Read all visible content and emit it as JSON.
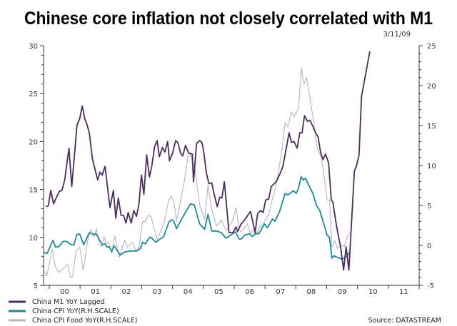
{
  "chart_data": {
    "type": "line",
    "title": "Chinese core inflation not closely correlated with M1",
    "date": "3/11/09",
    "source": "Source: DATASTREAM",
    "xlim": [
      1999.815,
      2012.0
    ],
    "x_tick_labels": [
      "00",
      "01",
      "02",
      "03",
      "04",
      "05",
      "06",
      "07",
      "08",
      "09",
      "10",
      "11"
    ],
    "y_left": {
      "range": [
        5,
        30
      ],
      "ticks": [
        "5",
        "10",
        "15",
        "20",
        "25",
        "30"
      ]
    },
    "y_right": {
      "range": [
        -5,
        25
      ],
      "ticks": [
        "-5",
        "0",
        "5",
        "10",
        "15",
        "20",
        "25"
      ]
    },
    "grid": false,
    "legend_position": "bottom-left",
    "series": [
      {
        "name": "China M1 YoY Lagged",
        "axis": "left",
        "color": "#4b2c5e",
        "points": [
          [
            1999.89,
            13.2
          ],
          [
            1999.97,
            13.3
          ],
          [
            2000.05,
            14.9
          ],
          [
            2000.14,
            13.5
          ],
          [
            2000.25,
            14.3
          ],
          [
            2000.33,
            14.8
          ],
          [
            2000.41,
            14.9
          ],
          [
            2000.5,
            16.0
          ],
          [
            2000.64,
            19.3
          ],
          [
            2000.73,
            15.3
          ],
          [
            2000.9,
            21.7
          ],
          [
            2000.99,
            22.4
          ],
          [
            2001.07,
            23.7
          ],
          [
            2001.15,
            22.4
          ],
          [
            2001.22,
            21.8
          ],
          [
            2001.3,
            20.9
          ],
          [
            2001.4,
            18.2
          ],
          [
            2001.57,
            16.0
          ],
          [
            2001.64,
            16.8
          ],
          [
            2001.72,
            16.5
          ],
          [
            2001.81,
            17.4
          ],
          [
            2001.97,
            13.1
          ],
          [
            2002.08,
            14.9
          ],
          [
            2002.16,
            12.0
          ],
          [
            2002.24,
            14.1
          ],
          [
            2002.33,
            12.3
          ],
          [
            2002.41,
            12.3
          ],
          [
            2002.49,
            11.5
          ],
          [
            2002.56,
            12.6
          ],
          [
            2002.66,
            11.5
          ],
          [
            2002.74,
            12.8
          ],
          [
            2002.83,
            12.2
          ],
          [
            2002.91,
            13.5
          ],
          [
            2002.99,
            16.5
          ],
          [
            2003.07,
            14.5
          ],
          [
            2003.16,
            18.6
          ],
          [
            2003.25,
            16.3
          ],
          [
            2003.33,
            17.5
          ],
          [
            2003.42,
            19.5
          ],
          [
            2003.5,
            20.1
          ],
          [
            2003.57,
            18.4
          ],
          [
            2003.67,
            19.4
          ],
          [
            2003.75,
            18.9
          ],
          [
            2003.84,
            20.0
          ],
          [
            2003.9,
            18.0
          ],
          [
            2004.0,
            18.8
          ],
          [
            2004.1,
            20.1
          ],
          [
            2004.17,
            19.9
          ],
          [
            2004.26,
            18.8
          ],
          [
            2004.33,
            18.5
          ],
          [
            2004.42,
            19.6
          ],
          [
            2004.52,
            18.8
          ],
          [
            2004.64,
            18.7
          ],
          [
            2004.68,
            15.8
          ],
          [
            2004.78,
            19.8
          ],
          [
            2004.88,
            20.1
          ],
          [
            2004.95,
            19.9
          ],
          [
            2005.0,
            19.2
          ],
          [
            2005.1,
            16.7
          ],
          [
            2005.18,
            15.6
          ],
          [
            2005.27,
            15.7
          ],
          [
            2005.35,
            14.5
          ],
          [
            2005.45,
            13.2
          ],
          [
            2005.53,
            14.2
          ],
          [
            2005.6,
            14.1
          ],
          [
            2005.68,
            15.8
          ],
          [
            2005.83,
            10.5
          ],
          [
            2005.96,
            10.5
          ],
          [
            2006.06,
            11.1
          ],
          [
            2006.11,
            10.6
          ],
          [
            2006.22,
            11.4
          ],
          [
            2006.31,
            11.7
          ],
          [
            2006.42,
            12.2
          ],
          [
            2006.53,
            12.7
          ],
          [
            2006.68,
            10.5
          ],
          [
            2006.76,
            12.5
          ],
          [
            2006.85,
            12.8
          ],
          [
            2006.94,
            12.6
          ],
          [
            2007.02,
            13.9
          ],
          [
            2007.12,
            14.0
          ],
          [
            2007.2,
            15.3
          ],
          [
            2007.36,
            15.8
          ],
          [
            2007.48,
            16.6
          ],
          [
            2007.58,
            17.4
          ],
          [
            2007.7,
            19.5
          ],
          [
            2007.78,
            20.9
          ],
          [
            2007.86,
            19.9
          ],
          [
            2007.94,
            20.0
          ],
          [
            2008.04,
            19.3
          ],
          [
            2008.13,
            20.9
          ],
          [
            2008.2,
            20.9
          ],
          [
            2008.28,
            22.7
          ],
          [
            2008.38,
            22.1
          ],
          [
            2008.46,
            22.2
          ],
          [
            2008.55,
            21.6
          ],
          [
            2008.64,
            20.9
          ],
          [
            2008.72,
            20.5
          ],
          [
            2008.8,
            18.9
          ],
          [
            2008.88,
            18.1
          ],
          [
            2008.96,
            18.7
          ],
          [
            2009.06,
            17.8
          ],
          [
            2009.15,
            13.9
          ],
          [
            2009.2,
            13.7
          ],
          [
            2009.32,
            11.2
          ],
          [
            2009.45,
            9.0
          ],
          [
            2009.55,
            6.6
          ],
          [
            2009.63,
            9.0
          ],
          [
            2009.72,
            6.6
          ],
          [
            2009.9,
            16.9
          ],
          [
            2009.97,
            17.5
          ],
          [
            2010.05,
            18.6
          ],
          [
            2010.13,
            24.7
          ],
          [
            2010.4,
            29.4
          ]
        ]
      },
      {
        "name": "China CPI YoY(R.H.SCALE)",
        "axis": "right",
        "color": "#1f8a94",
        "points": [
          [
            1999.83,
            -0.9
          ],
          [
            1999.93,
            -1.0
          ],
          [
            2000.12,
            0.65
          ],
          [
            2000.2,
            -0.2
          ],
          [
            2000.3,
            -0.2
          ],
          [
            2000.45,
            0.5
          ],
          [
            2000.56,
            0.5
          ],
          [
            2000.72,
            0.06
          ],
          [
            2000.8,
            0.06
          ],
          [
            2000.9,
            1.4
          ],
          [
            2000.99,
            1.4
          ],
          [
            2001.12,
            0.06
          ],
          [
            2001.3,
            1.6
          ],
          [
            2001.41,
            1.4
          ],
          [
            2001.53,
            1.4
          ],
          [
            2001.72,
            0.06
          ],
          [
            2001.8,
            0.2
          ],
          [
            2001.87,
            -0.2
          ],
          [
            2001.95,
            -0.2
          ],
          [
            2002.03,
            -0.8
          ],
          [
            2002.1,
            -0.05
          ],
          [
            2002.3,
            -1.2
          ],
          [
            2002.46,
            -0.8
          ],
          [
            2002.65,
            -0.7
          ],
          [
            2002.85,
            -0.7
          ],
          [
            2002.95,
            -0.4
          ],
          [
            2003.03,
            0.4
          ],
          [
            2003.12,
            0.2
          ],
          [
            2003.25,
            1.0
          ],
          [
            2003.3,
            1.0
          ],
          [
            2003.46,
            0.4
          ],
          [
            2003.71,
            1.1
          ],
          [
            2003.88,
            2.9
          ],
          [
            2003.96,
            3.2
          ],
          [
            2004.03,
            3.1
          ],
          [
            2004.13,
            2.1
          ],
          [
            2004.28,
            3.2
          ],
          [
            2004.58,
            5.2
          ],
          [
            2004.7,
            5.1
          ],
          [
            2004.88,
            2.7
          ],
          [
            2005.04,
            2.0
          ],
          [
            2005.15,
            3.9
          ],
          [
            2005.27,
            1.8
          ],
          [
            2005.42,
            1.8
          ],
          [
            2005.58,
            1.6
          ],
          [
            2005.73,
            0.9
          ],
          [
            2005.85,
            1.2
          ],
          [
            2006.04,
            1.7
          ],
          [
            2006.16,
            0.8
          ],
          [
            2006.23,
            0.8
          ],
          [
            2006.35,
            1.3
          ],
          [
            2006.5,
            1.45
          ],
          [
            2006.58,
            1.1
          ],
          [
            2006.7,
            1.5
          ],
          [
            2006.8,
            1.45
          ],
          [
            2006.98,
            2.7
          ],
          [
            2007.08,
            2.2
          ],
          [
            2007.24,
            3.3
          ],
          [
            2007.32,
            3.0
          ],
          [
            2007.47,
            4.2
          ],
          [
            2007.65,
            6.5
          ],
          [
            2007.74,
            6.3
          ],
          [
            2007.92,
            6.85
          ],
          [
            2008.01,
            6.5
          ],
          [
            2008.09,
            7.2
          ],
          [
            2008.17,
            8.6
          ],
          [
            2008.24,
            8.2
          ],
          [
            2008.31,
            8.4
          ],
          [
            2008.55,
            6.5
          ],
          [
            2008.67,
            5.0
          ],
          [
            2008.78,
            4.3
          ],
          [
            2008.94,
            2.3
          ],
          [
            2009.01,
            1.3
          ],
          [
            2009.09,
            1.0
          ],
          [
            2009.17,
            -1.6
          ],
          [
            2009.24,
            -1.3
          ],
          [
            2009.4,
            -1.6
          ],
          [
            2009.51,
            -1.7
          ],
          [
            2009.63,
            -1.4
          ],
          [
            2009.74,
            -0.9
          ]
        ]
      },
      {
        "name": "China CPI Food YoY(R.H.SCALE)",
        "axis": "right",
        "color": "#b9b4bf",
        "points": [
          [
            1999.83,
            -3.2
          ],
          [
            1999.92,
            -3.8
          ],
          [
            2000.1,
            -0.5
          ],
          [
            2000.19,
            -2.6
          ],
          [
            2000.3,
            -3.4
          ],
          [
            2000.45,
            -2.9
          ],
          [
            2000.6,
            -2.4
          ],
          [
            2000.69,
            -4.0
          ],
          [
            2000.76,
            -3.9
          ],
          [
            2000.86,
            -0.8
          ],
          [
            2000.99,
            -0.2
          ],
          [
            2001.1,
            -3.1
          ],
          [
            2001.24,
            0.5
          ],
          [
            2001.35,
            2.0
          ],
          [
            2001.45,
            1.0
          ],
          [
            2001.53,
            2.1
          ],
          [
            2001.62,
            0.06
          ],
          [
            2001.7,
            -0.2
          ],
          [
            2001.78,
            1.1
          ],
          [
            2001.85,
            0.2
          ],
          [
            2001.93,
            0.4
          ],
          [
            2002.02,
            -1.0
          ],
          [
            2002.13,
            1.2
          ],
          [
            2002.27,
            -1.5
          ],
          [
            2002.45,
            0.7
          ],
          [
            2002.53,
            -0.2
          ],
          [
            2002.72,
            0.4
          ],
          [
            2002.8,
            -0.7
          ],
          [
            2002.91,
            -0.2
          ],
          [
            2003.03,
            3.0
          ],
          [
            2003.12,
            3.0
          ],
          [
            2003.22,
            3.8
          ],
          [
            2003.3,
            3.6
          ],
          [
            2003.5,
            0.7
          ],
          [
            2003.65,
            2.1
          ],
          [
            2003.73,
            2.9
          ],
          [
            2003.88,
            5.7
          ],
          [
            2003.96,
            6.2
          ],
          [
            2004.06,
            5.1
          ],
          [
            2004.13,
            3.0
          ],
          [
            2004.28,
            5.9
          ],
          [
            2004.39,
            8.2
          ],
          [
            2004.5,
            11.2
          ],
          [
            2004.58,
            11.4
          ],
          [
            2004.73,
            9.4
          ],
          [
            2004.88,
            5.1
          ],
          [
            2005.04,
            3.2
          ],
          [
            2005.15,
            7.5
          ],
          [
            2005.27,
            4.5
          ],
          [
            2005.43,
            2.4
          ],
          [
            2005.58,
            3.2
          ],
          [
            2005.73,
            1.9
          ],
          [
            2005.89,
            2.7
          ],
          [
            2005.96,
            3.3
          ],
          [
            2006.06,
            4.7
          ],
          [
            2006.16,
            2.0
          ],
          [
            2006.23,
            1.7
          ],
          [
            2006.43,
            2.7
          ],
          [
            2006.53,
            1.3
          ],
          [
            2006.58,
            1.9
          ],
          [
            2006.7,
            1.3
          ],
          [
            2006.85,
            2.4
          ],
          [
            2006.93,
            2.7
          ],
          [
            2007.04,
            3.3
          ],
          [
            2007.13,
            4.0
          ],
          [
            2007.23,
            5.7
          ],
          [
            2007.31,
            6.7
          ],
          [
            2007.43,
            9.1
          ],
          [
            2007.55,
            12.0
          ],
          [
            2007.65,
            15.4
          ],
          [
            2007.74,
            14.8
          ],
          [
            2007.85,
            16.7
          ],
          [
            2007.95,
            16.1
          ],
          [
            2008.09,
            17.2
          ],
          [
            2008.18,
            22.2
          ],
          [
            2008.26,
            20.2
          ],
          [
            2008.35,
            21.0
          ],
          [
            2008.47,
            18.1
          ],
          [
            2008.59,
            15.2
          ],
          [
            2008.68,
            12.3
          ],
          [
            2008.8,
            11.2
          ],
          [
            2008.9,
            9.3
          ],
          [
            2009.01,
            5.7
          ],
          [
            2009.09,
            5.7
          ],
          [
            2009.17,
            -0.2
          ],
          [
            2009.26,
            0.6
          ],
          [
            2009.36,
            -0.4
          ],
          [
            2009.45,
            0.1
          ],
          [
            2009.57,
            -0.2
          ],
          [
            2009.66,
            1.0
          ],
          [
            2009.76,
            1.6
          ]
        ]
      }
    ]
  }
}
